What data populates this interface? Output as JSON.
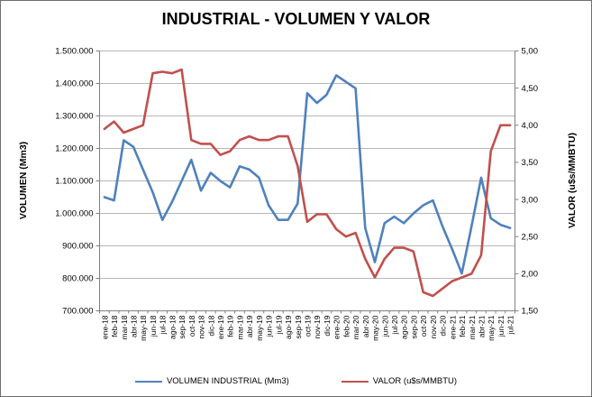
{
  "chart_data": {
    "type": "line",
    "title": "INDUSTRIAL - VOLUMEN Y VALOR",
    "grid": true,
    "legend_position": "bottom",
    "categories": [
      "ene-18",
      "feb-18",
      "mar-18",
      "abr-18",
      "may-18",
      "jun-18",
      "jul-18",
      "ago-18",
      "sep-18",
      "oct-18",
      "nov-18",
      "dic-18",
      "ene-19",
      "feb-19",
      "mar-19",
      "abr-19",
      "may-19",
      "jun-19",
      "jul-19",
      "ago-19",
      "sep-19",
      "oct-19",
      "nov-19",
      "dic-19",
      "ene-20",
      "feb-20",
      "mar-20",
      "abr-20",
      "may-20",
      "jun-20",
      "jul-20",
      "ago-20",
      "sep-20",
      "oct-20",
      "nov-20",
      "dic-20",
      "ene-21",
      "feb-21",
      "mar-21",
      "abr-21",
      "may-21",
      "jun-21",
      "jul-21"
    ],
    "series": [
      {
        "name": "VOLUMEN INDUSTRIAL (Mm3)",
        "axis": "left",
        "color": "#4F81BD",
        "values": [
          1050000,
          1040000,
          1225000,
          1205000,
          1135000,
          1065000,
          980000,
          1035000,
          1100000,
          1165000,
          1070000,
          1125000,
          1100000,
          1080000,
          1145000,
          1135000,
          1110000,
          1025000,
          980000,
          980000,
          1030000,
          1370000,
          1340000,
          1365000,
          1425000,
          1405000,
          1385000,
          955000,
          850000,
          970000,
          990000,
          970000,
          1000000,
          1025000,
          1040000,
          960000,
          890000,
          815000,
          960000,
          1110000,
          985000,
          965000,
          955000
        ]
      },
      {
        "name": "VALOR (u$s/MMBTU)",
        "axis": "right",
        "color": "#C0504D",
        "values": [
          3.95,
          4.05,
          3.9,
          3.95,
          4.0,
          4.7,
          4.72,
          4.7,
          4.75,
          3.8,
          3.75,
          3.75,
          3.6,
          3.65,
          3.8,
          3.85,
          3.8,
          3.8,
          3.85,
          3.85,
          3.45,
          2.7,
          2.8,
          2.8,
          2.6,
          2.5,
          2.55,
          2.2,
          1.95,
          2.2,
          2.35,
          2.35,
          2.3,
          1.75,
          1.7,
          1.8,
          1.9,
          1.95,
          2.0,
          2.25,
          3.65,
          4.0,
          4.0
        ]
      }
    ],
    "left_axis": {
      "label": "VOLUMEN (Mm3)",
      "min": 700000,
      "max": 1500000,
      "step": 100000,
      "tick_labels": [
        "1.500.000",
        "1.400.000",
        "1.300.000",
        "1.200.000",
        "1.100.000",
        "1.000.000",
        "900.000",
        "800.000",
        "700.000"
      ]
    },
    "right_axis": {
      "label": "VALOR (u$s/MMBTU)",
      "min": 1.5,
      "max": 5.0,
      "step": 0.5,
      "tick_labels": [
        "5,00",
        "4,50",
        "4,00",
        "3,50",
        "3,00",
        "2,50",
        "2,00",
        "1,50"
      ]
    }
  }
}
